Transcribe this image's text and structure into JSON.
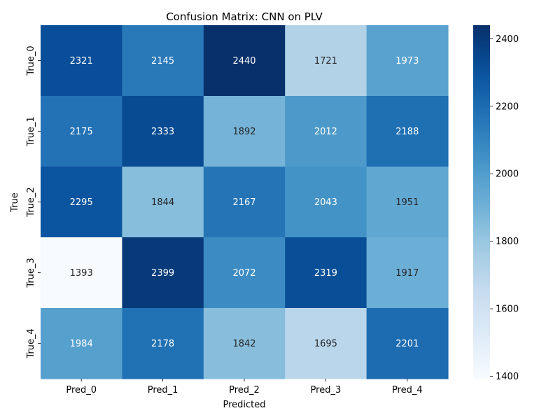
{
  "chart_data": {
    "type": "heatmap",
    "title": "Confusion Matrix: CNN on PLV",
    "xlabel": "Predicted",
    "ylabel": "True",
    "x_categories": [
      "Pred_0",
      "Pred_1",
      "Pred_2",
      "Pred_3",
      "Pred_4"
    ],
    "y_categories": [
      "True_0",
      "True_1",
      "True_2",
      "True_3",
      "True_4"
    ],
    "values": [
      [
        2321,
        2145,
        2440,
        1721,
        1973
      ],
      [
        2175,
        2333,
        1892,
        2012,
        2188
      ],
      [
        2295,
        1844,
        2167,
        2043,
        1951
      ],
      [
        1393,
        2399,
        2072,
        2319,
        1917
      ],
      [
        1984,
        2178,
        1842,
        1695,
        2201
      ]
    ],
    "colorbar": {
      "range": [
        1393,
        2440
      ],
      "ticks": [
        1400,
        1600,
        1800,
        2000,
        2200,
        2400
      ],
      "colormap": "Blues"
    }
  }
}
